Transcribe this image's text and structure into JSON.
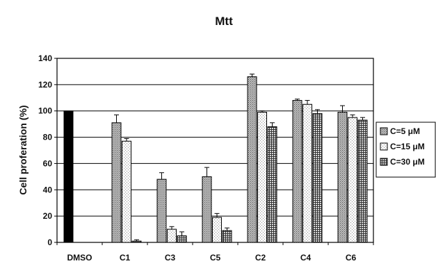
{
  "chart_data": {
    "type": "bar",
    "title": "Mtt",
    "xlabel": "",
    "ylabel": "Cell proferation (%)",
    "ylim": [
      0,
      140
    ],
    "yticks": [
      0,
      20,
      40,
      60,
      80,
      100,
      120,
      140
    ],
    "grid": true,
    "legend_position": "right",
    "categories": [
      "DMSO",
      "C1",
      "C3",
      "C5",
      "C2",
      "C4",
      "C6"
    ],
    "control": {
      "name": "DMSO",
      "value": 100,
      "color": "#000000"
    },
    "series": [
      {
        "name": "C=5 μM",
        "pattern": "dense-dots",
        "values": [
          null,
          91,
          48,
          50,
          126,
          108,
          99
        ],
        "errors": [
          null,
          6,
          5,
          7,
          2,
          1,
          5
        ]
      },
      {
        "name": "C=15 μM",
        "pattern": "light-dots",
        "values": [
          null,
          77,
          10,
          19,
          99,
          105,
          95
        ],
        "errors": [
          null,
          2,
          2,
          3,
          1,
          3,
          2
        ]
      },
      {
        "name": "C=30 μM",
        "pattern": "grid",
        "values": [
          null,
          1,
          5,
          9,
          88,
          98,
          93
        ],
        "errors": [
          null,
          1,
          3,
          2,
          3,
          3,
          2
        ]
      }
    ]
  }
}
